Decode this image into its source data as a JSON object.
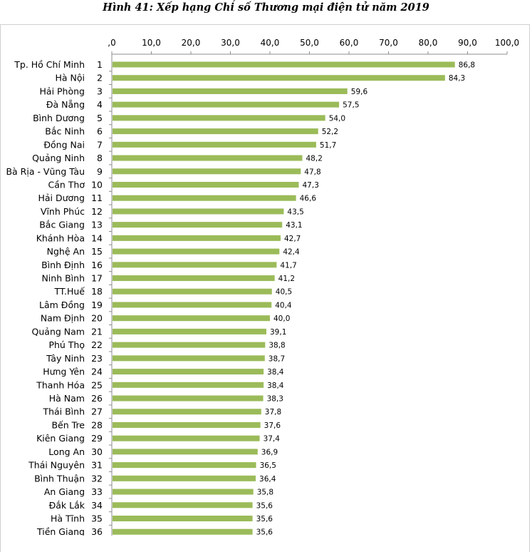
{
  "title": "Hình 41: Xếp hạng Chỉ số Thương mại điện tử năm 2019",
  "chart_data": {
    "type": "bar",
    "orientation": "horizontal",
    "title": "Hình 41: Xếp hạng Chỉ số Thương mại điện tử năm 2019",
    "xlim": [
      0,
      100
    ],
    "ticks": [
      ",0",
      "10,0",
      "20,0",
      "30,0",
      "40,0",
      "50,0",
      "60,0",
      "70,0",
      "80,0",
      "90,0",
      "100,0"
    ],
    "tick_values": [
      0,
      10,
      20,
      30,
      40,
      50,
      60,
      70,
      80,
      90,
      100
    ],
    "axis_position": "top",
    "grid": false,
    "bar_color": "#9bbb59",
    "categories": [
      "Tp. Hồ Chí Minh",
      "Hà Nội",
      "Hải Phòng",
      "Đà Nẵng",
      "Bình Dương",
      "Bắc Ninh",
      "Đồng Nai",
      "Quảng Ninh",
      "Bà Rịa - Vũng Tàu",
      "Cần Thơ",
      "Hải Dương",
      "Vĩnh Phúc",
      "Bắc Giang",
      "Khánh Hòa",
      "Nghệ An",
      "Bình Định",
      "Ninh Bình",
      "TT.Huế",
      "Lâm Đồng",
      "Nam Định",
      "Quảng Nam",
      "Phú Thọ",
      "Tây Ninh",
      "Hưng Yên",
      "Thanh Hóa",
      "Hà Nam",
      "Thái Bình",
      "Bến Tre",
      "Kiên Giang",
      "Long An",
      "Thái Nguyên",
      "Bình Thuận",
      "An Giang",
      "Đắk Lắk",
      "Hà Tĩnh",
      "Tiền Giang"
    ],
    "ranks": [
      "1",
      "2",
      "3",
      "4",
      "5",
      "6",
      "7",
      "8",
      "9",
      "10",
      "11",
      "12",
      "13",
      "14",
      "15",
      "16",
      "17",
      "18",
      "19",
      "20",
      "21",
      "22",
      "23",
      "24",
      "25",
      "26",
      "27",
      "28",
      "29",
      "30",
      "31",
      "32",
      "33",
      "34",
      "35",
      "36"
    ],
    "values": [
      86.8,
      84.3,
      59.6,
      57.5,
      54.0,
      52.2,
      51.7,
      48.2,
      47.8,
      47.3,
      46.6,
      43.5,
      43.1,
      42.7,
      42.4,
      41.7,
      41.2,
      40.5,
      40.4,
      40.0,
      39.1,
      38.8,
      38.7,
      38.4,
      38.4,
      38.3,
      37.8,
      37.6,
      37.4,
      36.9,
      36.5,
      36.4,
      35.8,
      35.6,
      35.6,
      35.6
    ],
    "value_labels": [
      "86,8",
      "84,3",
      "59,6",
      "57,5",
      "54,0",
      "52,2",
      "51,7",
      "48,2",
      "47,8",
      "47,3",
      "46,6",
      "43,5",
      "43,1",
      "42,7",
      "42,4",
      "41,7",
      "41,2",
      "40,5",
      "40,4",
      "40,0",
      "39,1",
      "38,8",
      "38,7",
      "38,4",
      "38,4",
      "38,3",
      "37,8",
      "37,6",
      "37,4",
      "36,9",
      "36,5",
      "36,4",
      "35,8",
      "35,6",
      "35,6",
      "35,6"
    ]
  }
}
